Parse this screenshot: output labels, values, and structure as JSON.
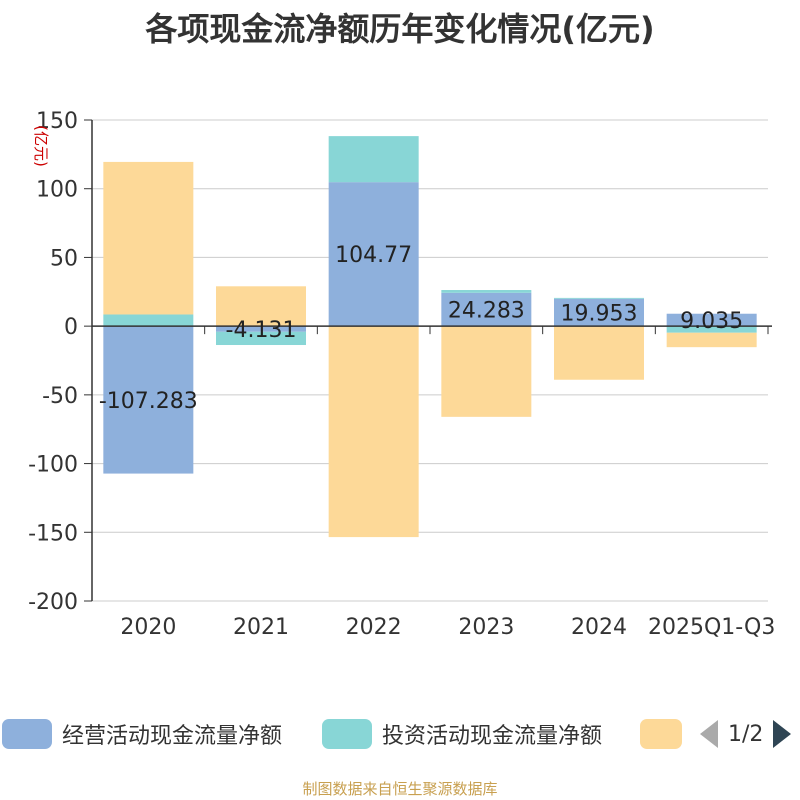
{
  "title": "各项现金流净额历年变化情况(亿元)",
  "source": "制图数据来自恒生聚源数据库",
  "pager": "1/2",
  "chart_data": {
    "type": "bar",
    "stacked": true,
    "title": "各项现金流净额历年变化情况(亿元)",
    "ylabel": "(亿元)",
    "xlabel": "",
    "ylim": [
      -200,
      150
    ],
    "yticks": [
      150,
      100,
      50,
      0,
      -50,
      -100,
      -150,
      -200
    ],
    "grid": true,
    "legend_position": "bottom",
    "categories": [
      "2020",
      "2021",
      "2022",
      "2023",
      "2024",
      "2025Q1-Q3"
    ],
    "series": [
      {
        "name": "经营活动现金流量净额",
        "color": "#8eb0dc",
        "values": [
          -107.283,
          -4.131,
          104.77,
          24.283,
          19.953,
          9.035
        ],
        "labels": [
          "-107.283",
          "-4.131",
          "104.77",
          "24.283",
          "19.953",
          "9.035"
        ]
      },
      {
        "name": "投资活动现金流量净额",
        "color": "#88d6d6",
        "values": [
          8.5,
          -9.6,
          33.5,
          2.0,
          0.6,
          -4.8
        ]
      },
      {
        "name": "",
        "color": "#fdd998",
        "values": [
          111.0,
          29.0,
          -153.5,
          -66.0,
          -39.0,
          -10.5
        ]
      }
    ]
  }
}
